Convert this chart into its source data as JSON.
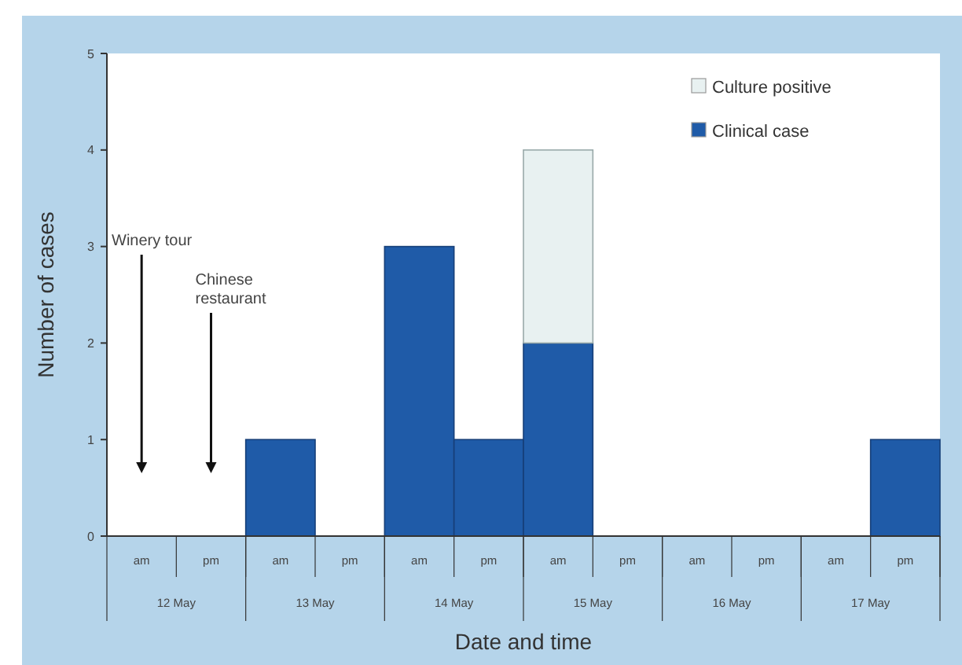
{
  "chart_data": {
    "type": "bar",
    "stacked": true,
    "xlabel": "Date and time",
    "ylabel": "Number of cases",
    "categories": [
      "am",
      "pm",
      "am",
      "pm",
      "am",
      "pm",
      "am",
      "pm",
      "am",
      "pm",
      "am",
      "pm"
    ],
    "series": [
      {
        "name": "Clinical case",
        "color": "#1f5ba8",
        "values": [
          0,
          0,
          1,
          0,
          3,
          1,
          2,
          0,
          0,
          0,
          0,
          1
        ]
      },
      {
        "name": "Culture positive",
        "color": "#e8f1f1",
        "values": [
          0,
          0,
          0,
          0,
          0,
          0,
          2,
          0,
          0,
          0,
          0,
          0
        ]
      }
    ],
    "ylim": [
      0,
      5
    ],
    "yticks": [
      0,
      1,
      2,
      3,
      4,
      5
    ],
    "grid": false,
    "legend": "top right",
    "annotations": [
      "Winery tour",
      "Chinese restaurant",
      "12 May",
      "13 May",
      "14 May",
      "15 May",
      "16 May",
      "17 May"
    ]
  }
}
